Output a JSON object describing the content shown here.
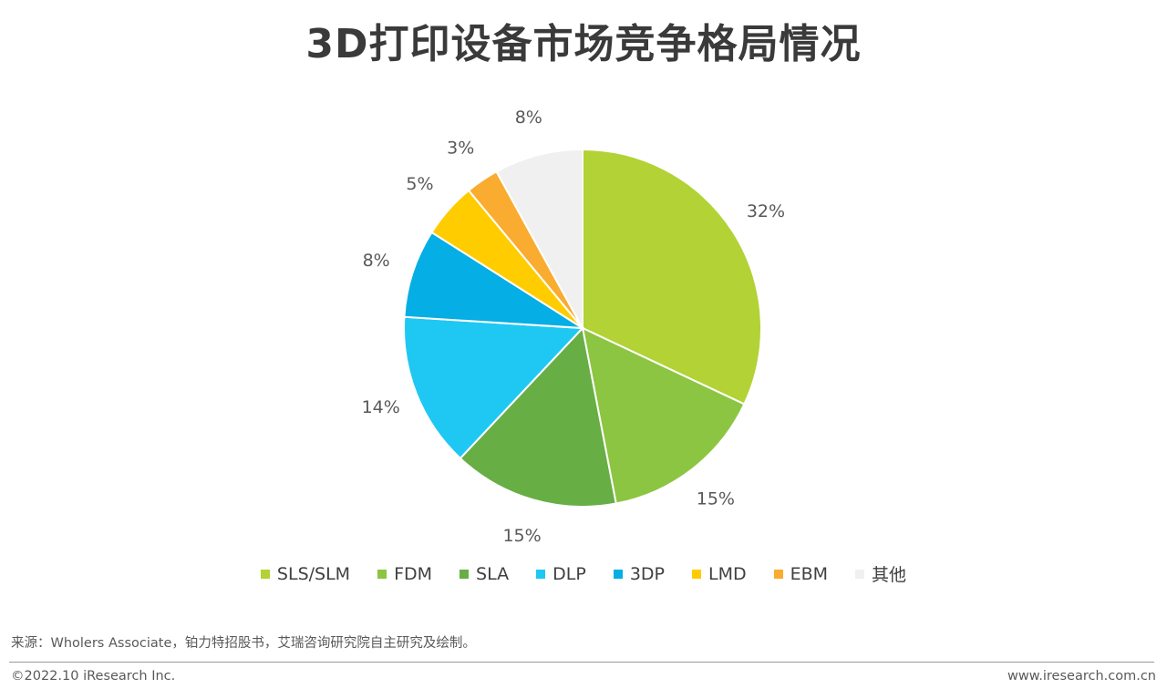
{
  "title": "3D打印设备市场竞争格局情况",
  "chart_data": {
    "type": "pie",
    "title": "3D打印设备市场竞争格局情况",
    "unit": "%",
    "slices": [
      {
        "name": "SLS/SLM",
        "value": 32,
        "label": "32%",
        "color": "#b2d235"
      },
      {
        "name": "FDM",
        "value": 15,
        "label": "15%",
        "color": "#8cc541"
      },
      {
        "name": "SLA",
        "value": 15,
        "label": "15%",
        "color": "#67ae45"
      },
      {
        "name": "DLP",
        "value": 14,
        "label": "14%",
        "color": "#1fc8f3"
      },
      {
        "name": "3DP",
        "value": 8,
        "label": "8%",
        "color": "#05aee4"
      },
      {
        "name": "LMD",
        "value": 5,
        "label": "5%",
        "color": "#ffcc00"
      },
      {
        "name": "EBM",
        "value": 3,
        "label": "3%",
        "color": "#f9ac30"
      },
      {
        "name": "其他",
        "value": 8,
        "label": "8%",
        "color": "#f0f0f0"
      }
    ],
    "legend_position": "bottom"
  },
  "footer": {
    "source": "来源：Wholers Associate，铂力特招股书，艾瑞咨询研究院自主研究及绘制。",
    "copyright": "©2022.10 iResearch Inc.",
    "website": "www.iresearch.com.cn"
  }
}
